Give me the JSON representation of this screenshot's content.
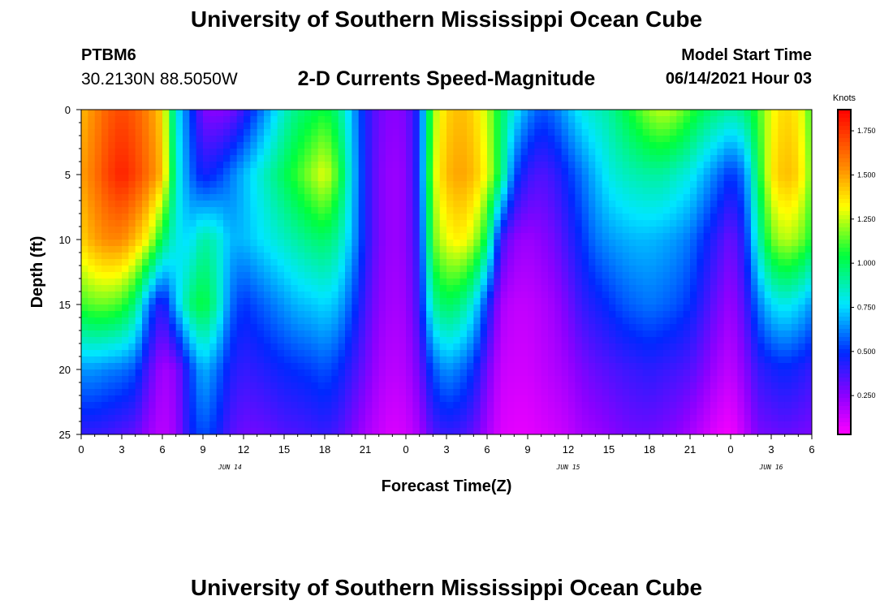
{
  "header": {
    "title_top": "University of Southern Mississippi Ocean Cube",
    "station_id": "PTBM6",
    "station_coords": "30.2130N  88.5050W",
    "plot_title": "2-D Currents Speed-Magnitude",
    "model_label": "Model Start Time",
    "model_time": "06/14/2021 Hour 03"
  },
  "footer": {
    "title_bottom": "University of Southern Mississippi Ocean Cube"
  },
  "chart_data": {
    "type": "heatmap",
    "xlabel": "Forecast Time(Z)",
    "ylabel": "Depth (ft)",
    "x_ticks": [
      "0",
      "3",
      "6",
      "9",
      "12",
      "15",
      "18",
      "21",
      "0",
      "3",
      "6",
      "9",
      "12",
      "15",
      "18",
      "21",
      "0",
      "3",
      "6"
    ],
    "x_range_hours": [
      0,
      54
    ],
    "date_labels": [
      {
        "label": "JUN 14",
        "at_hour": 11
      },
      {
        "label": "JUN 15",
        "at_hour": 36
      },
      {
        "label": "JUN 16",
        "at_hour": 51
      }
    ],
    "y_ticks": [
      "0",
      "5",
      "10",
      "15",
      "20",
      "25"
    ],
    "ylim": [
      0,
      25
    ],
    "y_inverted": true,
    "colorbar": {
      "unit": "Knots",
      "ticks": [
        "0.250",
        "0.500",
        "0.750",
        "1.000",
        "1.250",
        "1.500",
        "1.750"
      ],
      "range": [
        0.03,
        1.87
      ]
    },
    "speed_field": {
      "time_hours": [
        0,
        1,
        2,
        3,
        4,
        5,
        6,
        7,
        8,
        9,
        10,
        11,
        12,
        13,
        14,
        15,
        16,
        17,
        18,
        19,
        20,
        21,
        22,
        23,
        24,
        25,
        26,
        27,
        28,
        29,
        30,
        31,
        32,
        33,
        34,
        35,
        36,
        37,
        38,
        39,
        40,
        41,
        42,
        43,
        44,
        45,
        46,
        47,
        48,
        49,
        50,
        51,
        52,
        53,
        54
      ],
      "depth_ft": [
        0,
        5,
        10,
        15,
        20,
        25
      ],
      "values_by_depth": [
        [
          1.45,
          1.55,
          1.65,
          1.7,
          1.65,
          1.55,
          1.4,
          0.8,
          0.55,
          0.28,
          0.25,
          0.28,
          0.4,
          0.55,
          0.7,
          0.85,
          0.95,
          1.0,
          1.05,
          0.95,
          0.7,
          0.45,
          0.3,
          0.25,
          0.28,
          0.5,
          1.2,
          1.4,
          1.45,
          1.4,
          1.25,
          1.0,
          0.8,
          0.65,
          0.55,
          0.6,
          0.7,
          0.8,
          0.85,
          0.9,
          1.0,
          1.1,
          1.2,
          1.25,
          1.2,
          1.1,
          1.0,
          0.95,
          0.9,
          0.95,
          1.1,
          1.3,
          1.4,
          1.35,
          1.1
        ],
        [
          1.5,
          1.6,
          1.72,
          1.8,
          1.72,
          1.6,
          1.45,
          0.85,
          0.6,
          0.45,
          0.5,
          0.6,
          0.7,
          0.8,
          0.9,
          1.0,
          1.1,
          1.2,
          1.3,
          1.1,
          0.75,
          0.45,
          0.28,
          0.22,
          0.25,
          0.5,
          1.25,
          1.45,
          1.5,
          1.45,
          1.3,
          1.0,
          0.55,
          0.4,
          0.35,
          0.4,
          0.5,
          0.6,
          0.7,
          0.8,
          0.85,
          0.88,
          0.9,
          0.9,
          0.85,
          0.8,
          0.7,
          0.6,
          0.5,
          0.6,
          1.0,
          1.35,
          1.45,
          1.4,
          1.15
        ],
        [
          1.4,
          1.5,
          1.55,
          1.55,
          1.45,
          1.3,
          1.0,
          0.8,
          0.75,
          0.9,
          0.85,
          0.7,
          0.7,
          0.75,
          0.8,
          0.85,
          0.9,
          0.95,
          0.98,
          0.9,
          0.7,
          0.45,
          0.28,
          0.22,
          0.25,
          0.45,
          1.15,
          1.3,
          1.35,
          1.25,
          1.0,
          0.4,
          0.25,
          0.22,
          0.25,
          0.3,
          0.4,
          0.5,
          0.6,
          0.65,
          0.68,
          0.7,
          0.7,
          0.68,
          0.65,
          0.6,
          0.5,
          0.4,
          0.3,
          0.45,
          0.85,
          1.15,
          1.25,
          1.2,
          1.05
        ],
        [
          1.1,
          1.15,
          1.15,
          1.1,
          0.95,
          0.6,
          0.4,
          0.7,
          0.95,
          1.05,
          0.9,
          0.6,
          0.5,
          0.55,
          0.6,
          0.65,
          0.7,
          0.72,
          0.75,
          0.7,
          0.55,
          0.38,
          0.25,
          0.2,
          0.22,
          0.4,
          0.9,
          1.0,
          0.95,
          0.8,
          0.5,
          0.2,
          0.15,
          0.15,
          0.18,
          0.22,
          0.3,
          0.4,
          0.45,
          0.5,
          0.55,
          0.58,
          0.6,
          0.58,
          0.55,
          0.5,
          0.4,
          0.3,
          0.22,
          0.35,
          0.6,
          0.75,
          0.8,
          0.75,
          0.65
        ],
        [
          0.65,
          0.65,
          0.62,
          0.6,
          0.55,
          0.35,
          0.2,
          0.25,
          0.5,
          0.7,
          0.6,
          0.45,
          0.4,
          0.42,
          0.45,
          0.48,
          0.5,
          0.52,
          0.55,
          0.5,
          0.4,
          0.3,
          0.2,
          0.16,
          0.18,
          0.3,
          0.55,
          0.65,
          0.6,
          0.5,
          0.3,
          0.14,
          0.12,
          0.12,
          0.15,
          0.18,
          0.22,
          0.28,
          0.32,
          0.35,
          0.38,
          0.4,
          0.42,
          0.4,
          0.38,
          0.35,
          0.28,
          0.2,
          0.15,
          0.25,
          0.4,
          0.45,
          0.48,
          0.45,
          0.4
        ],
        [
          0.4,
          0.4,
          0.38,
          0.35,
          0.32,
          0.22,
          0.16,
          0.22,
          0.45,
          0.55,
          0.48,
          0.35,
          0.3,
          0.3,
          0.32,
          0.35,
          0.36,
          0.38,
          0.4,
          0.36,
          0.28,
          0.2,
          0.14,
          0.1,
          0.12,
          0.2,
          0.35,
          0.4,
          0.38,
          0.32,
          0.2,
          0.1,
          0.08,
          0.08,
          0.1,
          0.12,
          0.15,
          0.2,
          0.22,
          0.25,
          0.28,
          0.3,
          0.3,
          0.28,
          0.25,
          0.2,
          0.14,
          0.08,
          0.05,
          0.15,
          0.28,
          0.3,
          0.32,
          0.3,
          0.28
        ]
      ]
    }
  }
}
